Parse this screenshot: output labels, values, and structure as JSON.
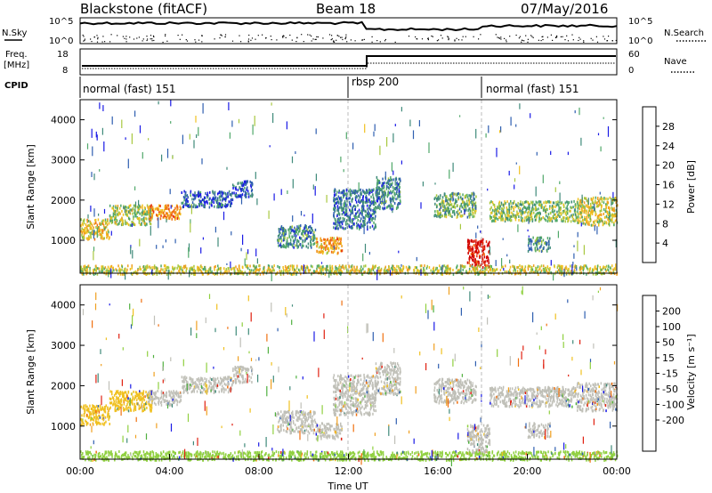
{
  "header": {
    "station": "Blackstone (fitACF)",
    "beam": "Beam 18",
    "date": "07/May/2016"
  },
  "status_panel": {
    "nsky_label": "N.Sky",
    "nsearch_label": "N.Search",
    "freq_label_1": "Freq.",
    "freq_label_2": "[MHz]",
    "nave_label": "Nave",
    "cpid_label": "CPID",
    "left_ticks_top": [
      "10^5",
      "10^0"
    ],
    "right_ticks_top": [
      "10^5",
      "10^0"
    ],
    "left_ticks_freq": [
      "18",
      "8"
    ],
    "right_ticks_nave": [
      "60",
      "0"
    ],
    "cpid_segments": [
      {
        "label": "normal (fast) 151",
        "start_hour": 0
      },
      {
        "label": "rbsp 200",
        "start_hour": 12
      },
      {
        "label": "normal (fast) 151",
        "start_hour": 18
      }
    ]
  },
  "chart_data": [
    {
      "type": "heatmap",
      "name": "power",
      "ylabel": "Slant Range [km]",
      "xlabel": "",
      "xlim_hours": [
        0,
        24
      ],
      "ylim": [
        180,
        4500
      ],
      "yticks": [
        "1000",
        "2000",
        "3000",
        "4000"
      ],
      "colorbar": {
        "label": "Power [dB]",
        "ticks": [
          "4",
          "8",
          "12",
          "16",
          "20",
          "24",
          "28"
        ],
        "colors": [
          "#1a1ae6",
          "#2f5fb0",
          "#3f8a7a",
          "#50a86a",
          "#a8c840",
          "#f0c020",
          "#f0a020",
          "#f07010",
          "#e83010",
          "#d00000"
        ]
      },
      "regions": [
        {
          "hours": [
            0.0,
            1.3
          ],
          "range_km": [
            1050,
            1550
          ],
          "level": 0.55
        },
        {
          "hours": [
            1.3,
            3.2
          ],
          "range_km": [
            1400,
            1900
          ],
          "level": 0.45
        },
        {
          "hours": [
            3.0,
            4.5
          ],
          "range_km": [
            1550,
            1900
          ],
          "level": 0.7
        },
        {
          "hours": [
            4.5,
            6.8
          ],
          "range_km": [
            1850,
            2250
          ],
          "level": 0.15
        },
        {
          "hours": [
            6.8,
            7.7
          ],
          "range_km": [
            2100,
            2500
          ],
          "level": 0.15
        },
        {
          "hours": [
            8.8,
            10.5
          ],
          "range_km": [
            850,
            1400
          ],
          "level": 0.25
        },
        {
          "hours": [
            10.5,
            11.7
          ],
          "range_km": [
            700,
            1100
          ],
          "level": 0.65
        },
        {
          "hours": [
            11.3,
            13.2
          ],
          "range_km": [
            1300,
            2300
          ],
          "level": 0.2
        },
        {
          "hours": [
            13.2,
            14.3
          ],
          "range_km": [
            1800,
            2600
          ],
          "level": 0.25
        },
        {
          "hours": [
            15.8,
            17.7
          ],
          "range_km": [
            1600,
            2200
          ],
          "level": 0.35
        },
        {
          "hours": [
            17.3,
            18.3
          ],
          "range_km": [
            350,
            1050
          ],
          "level": 0.95
        },
        {
          "hours": [
            18.3,
            22.2
          ],
          "range_km": [
            1500,
            2000
          ],
          "level": 0.4
        },
        {
          "hours": [
            20.0,
            21.0
          ],
          "range_km": [
            750,
            1100
          ],
          "level": 0.3
        },
        {
          "hours": [
            22.2,
            24.0
          ],
          "range_km": [
            1400,
            2100
          ],
          "level": 0.5
        },
        {
          "hours": [
            0.0,
            24.0
          ],
          "range_km": [
            180,
            400
          ],
          "level": 0.5
        }
      ]
    },
    {
      "type": "heatmap",
      "name": "velocity",
      "ylabel": "Slant Range [km]",
      "xlabel": "Time UT",
      "xlim_hours": [
        0,
        24
      ],
      "ylim": [
        180,
        4500
      ],
      "yticks": [
        "1000",
        "2000",
        "3000",
        "4000"
      ],
      "xticks": [
        "00:00",
        "04:00",
        "08:00",
        "12:00",
        "16:00",
        "20:00",
        "00:00"
      ],
      "colorbar": {
        "label": "Velocity [m s⁻¹]",
        "ticks": [
          "200",
          "100",
          "50",
          "15",
          "-15",
          "-50",
          "-100",
          "-200"
        ],
        "colors": [
          "#1a1ae6",
          "#2f5fb0",
          "#3f8a7a",
          "#50b040",
          "#90d040",
          "#c0c0b8",
          "#f0c020",
          "#f0a020",
          "#f07010",
          "#e02010"
        ]
      },
      "regions": [
        {
          "hours": [
            0.0,
            1.3
          ],
          "range_km": [
            1050,
            1550
          ],
          "color": "#f0c020"
        },
        {
          "hours": [
            1.3,
            3.2
          ],
          "range_km": [
            1400,
            1900
          ],
          "color": "#f0c020"
        },
        {
          "hours": [
            3.0,
            4.5
          ],
          "range_km": [
            1550,
            1900
          ],
          "color": "#c0c0b8"
        },
        {
          "hours": [
            4.5,
            6.8
          ],
          "range_km": [
            1850,
            2250
          ],
          "color": "#c0c0b8"
        },
        {
          "hours": [
            6.8,
            7.7
          ],
          "range_km": [
            2100,
            2500
          ],
          "color": "#c0c0b8"
        },
        {
          "hours": [
            8.8,
            10.5
          ],
          "range_km": [
            850,
            1400
          ],
          "color": "#c0c0b8"
        },
        {
          "hours": [
            10.5,
            11.7
          ],
          "range_km": [
            700,
            1100
          ],
          "color": "#c0c0b8"
        },
        {
          "hours": [
            11.3,
            13.2
          ],
          "range_km": [
            1300,
            2300
          ],
          "color": "#c0c0b8"
        },
        {
          "hours": [
            13.2,
            14.3
          ],
          "range_km": [
            1800,
            2600
          ],
          "color": "#c0c0b8"
        },
        {
          "hours": [
            15.8,
            17.7
          ],
          "range_km": [
            1600,
            2200
          ],
          "color": "#c0c0b8"
        },
        {
          "hours": [
            17.3,
            18.3
          ],
          "range_km": [
            350,
            1050
          ],
          "color": "#c0c0b8"
        },
        {
          "hours": [
            18.3,
            22.2
          ],
          "range_km": [
            1500,
            2000
          ],
          "color": "#c0c0b8"
        },
        {
          "hours": [
            20.0,
            21.0
          ],
          "range_km": [
            750,
            1100
          ],
          "color": "#c0c0b8"
        },
        {
          "hours": [
            22.2,
            24.0
          ],
          "range_km": [
            1400,
            2100
          ],
          "color": "#c0c0b8"
        },
        {
          "hours": [
            0.0,
            24.0
          ],
          "range_km": [
            180,
            400
          ],
          "color": "#90d040"
        }
      ]
    }
  ]
}
